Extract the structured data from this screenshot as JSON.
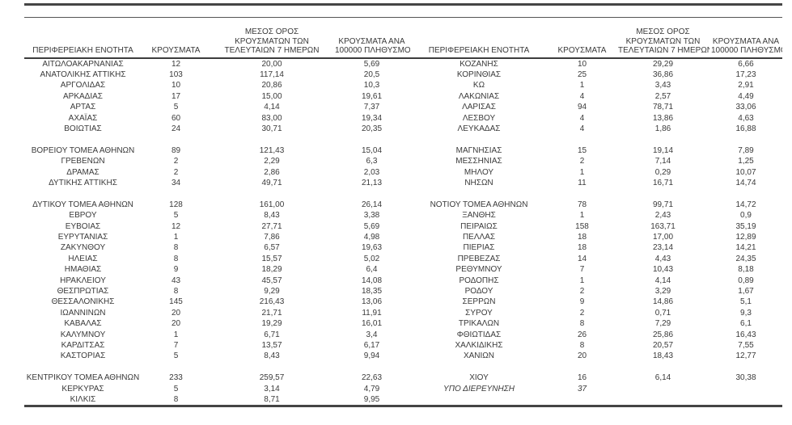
{
  "table": {
    "headers": {
      "region": "ΠΕΡΙΦΕΡΕΙΑΚΗ ΕΝΟΤΗΤΑ",
      "cases": "ΚΡΟΥΣΜΑΤΑ",
      "avg7_line1": "ΜΕΣΟΣ ΟΡΟΣ",
      "avg7_line2": "ΚΡΟΥΣΜΑΤΩΝ ΤΩΝ",
      "avg7_line3": "ΤΕΛΕΥΤΑΙΩΝ 7 ΗΜΕΡΩΝ",
      "per100k_line1": "ΚΡΟΥΣΜΑΤΑ ΑΝΑ",
      "per100k_line2": "100000 ΠΛΗΘΥΣΜΟ"
    },
    "rows": [
      [
        "ΑΙΤΩΛΟΑΚΑΡΝΑΝΙΑΣ",
        "12",
        "20,00",
        "5,69",
        "ΚΟΖΑΝΗΣ",
        "10",
        "29,29",
        "6,66"
      ],
      [
        "ΑΝΑΤΟΛΙΚΗΣ ΑΤΤΙΚΗΣ",
        "103",
        "117,14",
        "20,5",
        "ΚΟΡΙΝΘΙΑΣ",
        "25",
        "36,86",
        "17,23"
      ],
      [
        "ΑΡΓΟΛΙΔΑΣ",
        "10",
        "20,86",
        "10,3",
        "ΚΩ",
        "1",
        "3,43",
        "2,91"
      ],
      [
        "ΑΡΚΑΔΙΑΣ",
        "17",
        "15,00",
        "19,61",
        "ΛΑΚΩΝΙΑΣ",
        "4",
        "2,57",
        "4,49"
      ],
      [
        "ΑΡΤΑΣ",
        "5",
        "4,14",
        "7,37",
        "ΛΑΡΙΣΑΣ",
        "94",
        "78,71",
        "33,06"
      ],
      [
        "ΑΧΑΪΑΣ",
        "60",
        "83,00",
        "19,34",
        "ΛΕΣΒΟΥ",
        "4",
        "13,86",
        "4,63"
      ],
      [
        "ΒΟΙΩΤΙΑΣ",
        "24",
        "30,71",
        "20,35",
        "ΛΕΥΚΑΔΑΣ",
        "4",
        "1,86",
        "16,88"
      ],
      [
        "",
        "",
        "",
        "",
        "",
        "",
        "",
        ""
      ],
      [
        "ΒΟΡΕΙΟΥ ΤΟΜΕΑ ΑΘΗΝΩΝ",
        "89",
        "121,43",
        "15,04",
        "ΜΑΓΝΗΣΙΑΣ",
        "15",
        "19,14",
        "7,89"
      ],
      [
        "ΓΡΕΒΕΝΩΝ",
        "2",
        "2,29",
        "6,3",
        "ΜΕΣΣΗΝΙΑΣ",
        "2",
        "7,14",
        "1,25"
      ],
      [
        "ΔΡΑΜΑΣ",
        "2",
        "2,86",
        "2,03",
        "ΜΗΛΟΥ",
        "1",
        "0,29",
        "10,07"
      ],
      [
        "ΔΥΤΙΚΗΣ ΑΤΤΙΚΗΣ",
        "34",
        "49,71",
        "21,13",
        "ΝΗΣΩΝ",
        "11",
        "16,71",
        "14,74"
      ],
      [
        "",
        "",
        "",
        "",
        "",
        "",
        "",
        ""
      ],
      [
        "ΔΥΤΙΚΟΥ ΤΟΜΕΑ ΑΘΗΝΩΝ",
        "128",
        "161,00",
        "26,14",
        "ΝΟΤΙΟΥ ΤΟΜΕΑ ΑΘΗΝΩΝ",
        "78",
        "99,71",
        "14,72"
      ],
      [
        "ΕΒΡΟΥ",
        "5",
        "8,43",
        "3,38",
        "ΞΑΝΘΗΣ",
        "1",
        "2,43",
        "0,9"
      ],
      [
        "ΕΥΒΟΙΑΣ",
        "12",
        "27,71",
        "5,69",
        "ΠΕΙΡΑΙΩΣ",
        "158",
        "163,71",
        "35,19"
      ],
      [
        "ΕΥΡΥΤΑΝΙΑΣ",
        "1",
        "7,86",
        "4,98",
        "ΠΕΛΛΑΣ",
        "18",
        "17,00",
        "12,89"
      ],
      [
        "ΖΑΚΥΝΘΟΥ",
        "8",
        "6,57",
        "19,63",
        "ΠΙΕΡΙΑΣ",
        "18",
        "23,14",
        "14,21"
      ],
      [
        "ΗΛΕΙΑΣ",
        "8",
        "15,57",
        "5,02",
        "ΠΡΕΒΕΖΑΣ",
        "14",
        "4,43",
        "24,35"
      ],
      [
        "ΗΜΑΘΙΑΣ",
        "9",
        "18,29",
        "6,4",
        "ΡΕΘΥΜΝΟΥ",
        "7",
        "10,43",
        "8,18"
      ],
      [
        "ΗΡΑΚΛΕΙΟΥ",
        "43",
        "45,57",
        "14,08",
        "ΡΟΔΟΠΗΣ",
        "1",
        "4,14",
        "0,89"
      ],
      [
        "ΘΕΣΠΡΩΤΙΑΣ",
        "8",
        "9,29",
        "18,35",
        "ΡΟΔΟΥ",
        "2",
        "3,29",
        "1,67"
      ],
      [
        "ΘΕΣΣΑΛΟΝΙΚΗΣ",
        "145",
        "216,43",
        "13,06",
        "ΣΕΡΡΩΝ",
        "9",
        "14,86",
        "5,1"
      ],
      [
        "ΙΩΑΝΝΙΝΩΝ",
        "20",
        "21,71",
        "11,91",
        "ΣΥΡΟΥ",
        "2",
        "0,71",
        "9,3"
      ],
      [
        "ΚΑΒΑΛΑΣ",
        "20",
        "19,29",
        "16,01",
        "ΤΡΙΚΑΛΩΝ",
        "8",
        "7,29",
        "6,1"
      ],
      [
        "ΚΑΛΥΜΝΟΥ",
        "1",
        "6,71",
        "3,4",
        "ΦΘΙΩΤΙΔΑΣ",
        "26",
        "25,86",
        "16,43"
      ],
      [
        "ΚΑΡΔΙΤΣΑΣ",
        "7",
        "13,57",
        "6,17",
        "ΧΑΛΚΙΔΙΚΗΣ",
        "8",
        "20,57",
        "7,55"
      ],
      [
        "ΚΑΣΤΟΡΙΑΣ",
        "5",
        "8,43",
        "9,94",
        "ΧΑΝΙΩΝ",
        "20",
        "18,43",
        "12,77"
      ],
      [
        "",
        "",
        "",
        "",
        "",
        "",
        "",
        ""
      ],
      [
        "ΚΕΝΤΡΙΚΟΥ ΤΟΜΕΑ ΑΘΗΝΩΝ",
        "233",
        "259,57",
        "22,63",
        "ΧΙΟΥ",
        "16",
        "6,14",
        "30,38"
      ],
      [
        "ΚΕΡΚΥΡΑΣ",
        "5",
        "3,14",
        "4,79",
        "ΥΠΟ ΔΙΕΡΕΥΝΗΣΗ",
        "37",
        "",
        ""
      ],
      [
        "ΚΙΛΚΙΣ",
        "8",
        "8,71",
        "9,95",
        "",
        "",
        "",
        ""
      ]
    ],
    "italic_row": 30,
    "italic_cols": [
      4,
      5
    ]
  },
  "colors": {
    "text": "#3a3a3a",
    "rule": "#454545"
  }
}
